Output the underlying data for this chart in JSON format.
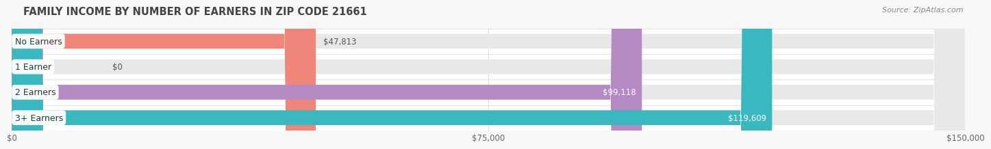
{
  "title": "FAMILY INCOME BY NUMBER OF EARNERS IN ZIP CODE 21661",
  "source": "Source: ZipAtlas.com",
  "categories": [
    "No Earners",
    "1 Earner",
    "2 Earners",
    "3+ Earners"
  ],
  "values": [
    47813,
    0,
    99118,
    119609
  ],
  "bar_colors": [
    "#f0857a",
    "#a8c4e0",
    "#b589c4",
    "#3ab8bf"
  ],
  "bar_bg_color": "#e8e8e8",
  "xlim": [
    0,
    150000
  ],
  "xticks": [
    0,
    75000,
    150000
  ],
  "xtick_labels": [
    "$0",
    "$75,000",
    "$150,000"
  ],
  "background_color": "#f7f7f7",
  "bar_height": 0.58,
  "bar_gap": 0.12,
  "title_fontsize": 10.5,
  "label_fontsize": 9,
  "value_fontsize": 8.5,
  "source_fontsize": 8
}
